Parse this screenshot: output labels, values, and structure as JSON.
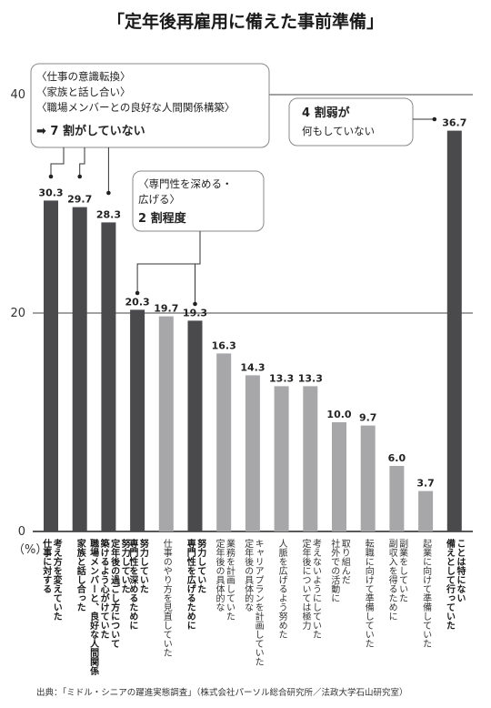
{
  "chart_data": {
    "type": "bar",
    "title": "「定年後再雇用に備えた事前準備」",
    "unit_label": "（%）",
    "ylim": [
      0,
      40
    ],
    "yticks": [
      0,
      20,
      40
    ],
    "grid": true,
    "categories": [
      "考え方を変えていた|仕事に対する",
      "家族と話し合った",
      "努力していた|定年後の過ごし方について|築けるよう心がけていた|職場メンバーと、良好な人間関係",
      "努力していた|専門性を深めるために",
      "仕事のやり方を見直していた",
      "努力していた|専門性を広げるために",
      "業務を計画していた|定年後の具体的な",
      "キャリアプランを計画していた|定年後の具体的な",
      "人脈を広げるよう努めた",
      "考えないようにしていた|定年後については極力",
      "取り組んだ|社外での活動に",
      "転職に向けて準備していた",
      "副業をしていた|副収入を得るために",
      "起業に向けて準備していた",
      "ことは特にない|備えとして行っていた"
    ],
    "values": [
      30.3,
      29.7,
      28.3,
      20.3,
      19.7,
      19.3,
      16.3,
      14.3,
      13.3,
      13.3,
      10.0,
      9.7,
      6.0,
      3.7,
      36.7
    ],
    "value_labels": [
      "30.3",
      "29.7",
      "28.3",
      "20.3",
      "19.7",
      "19.3",
      "16.3",
      "14.3",
      "13.3",
      "13.3",
      "10.0",
      "9.7",
      "6.0",
      "3.7",
      "36.7"
    ],
    "bar_groups": [
      "dark",
      "dark",
      "dark",
      "dark",
      "light",
      "dark",
      "light",
      "light",
      "light",
      "light",
      "light",
      "light",
      "light",
      "light",
      "dark"
    ],
    "bold_categories": [
      0,
      1,
      2,
      3,
      5,
      14
    ],
    "colors": {
      "dark": "#4a4a4c",
      "light": "#a7a7a9",
      "grid": "#444444",
      "callout": "#888888"
    },
    "annotations": [
      {
        "id": "callout-7wari",
        "lines": [
          "〈仕事の意識転換〉",
          "〈家族と話し合い〉",
          "〈職場メンバーとの良好な人間関係構築〉"
        ],
        "conclusion": "➡ 7 割がしていない",
        "targets": [
          0,
          1,
          2
        ]
      },
      {
        "id": "callout-2wari",
        "lines": [
          "〈専門性を深める・",
          "広げる〉"
        ],
        "conclusion": "2 割程度",
        "targets": [
          3,
          5
        ]
      },
      {
        "id": "callout-4wari",
        "lines": [
          "4 割弱が",
          "何もしていない"
        ],
        "targets": [
          14
        ]
      }
    ],
    "source": "出典：「ミドル・シニアの躍進実態調査」（株式会社パーソル総合研究所／法政大学石山研究室）"
  }
}
